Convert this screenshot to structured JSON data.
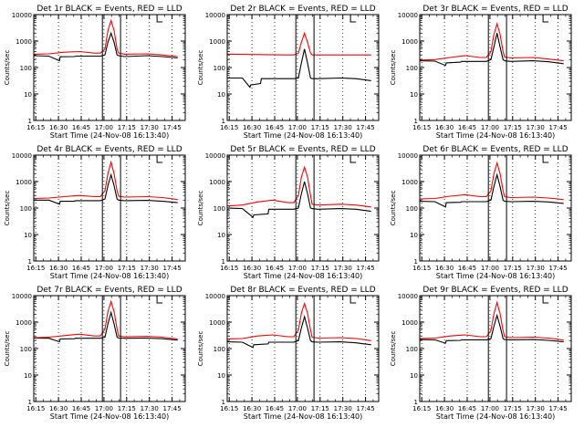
{
  "page": {
    "background": "#ffffff"
  },
  "colors": {
    "events": "#000000",
    "lld": "#ff0000",
    "axis": "#000000"
  },
  "shared": {
    "x_tick_labels": [
      "16:15",
      "16:30",
      "16:45",
      "17:00",
      "17:15",
      "17:30",
      "17:45"
    ],
    "y_tick_labels": [
      "1",
      "10",
      "100",
      "1000",
      "10000"
    ],
    "xlabel": "Start Time (24-Nov-08 16:13:40)",
    "ylabel": "Counts/sec"
  },
  "chart_data": [
    {
      "type": "line",
      "title": "Det 1r BLACK = Events, RED = LLD",
      "xlabel": "Start Time (24-Nov-08 16:13:40)",
      "ylabel": "Counts/sec",
      "x_unit": "minutes after 16:13:40",
      "xlim": [
        0,
        100
      ],
      "ylim": [
        1,
        10000
      ],
      "log_y": true,
      "grid": "vertical dotted at x ticks",
      "vertical_markers": [
        45.3,
        57.3
      ],
      "series": [
        {
          "name": "Events",
          "color": "#000000",
          "x": [
            0,
            10,
            17,
            17.5,
            27,
            27.5,
            44,
            47,
            49,
            51,
            53,
            55,
            56,
            60,
            75,
            85,
            95
          ],
          "y": [
            280,
            270,
            180,
            255,
            260,
            270,
            270,
            300,
            900,
            2000,
            900,
            300,
            280,
            260,
            280,
            260,
            230
          ]
        },
        {
          "name": "LLD",
          "color": "#ff0000",
          "x": [
            0,
            10,
            20,
            30,
            40,
            44,
            47,
            49,
            51,
            53,
            55,
            56,
            60,
            75,
            85,
            95
          ],
          "y": [
            320,
            330,
            380,
            400,
            350,
            350,
            500,
            2500,
            6000,
            2500,
            500,
            350,
            320,
            330,
            300,
            260
          ]
        }
      ]
    },
    {
      "type": "line",
      "title": "Det 2r BLACK = Events, RED = LLD",
      "xlabel": "Start Time (24-Nov-08 16:13:40)",
      "ylabel": "Counts/sec",
      "x_unit": "minutes after 16:13:40",
      "xlim": [
        0,
        100
      ],
      "ylim": [
        1,
        10000
      ],
      "log_y": true,
      "grid": "vertical dotted at x ticks",
      "vertical_markers": [
        45.3,
        57.3
      ],
      "series": [
        {
          "name": "Events",
          "color": "#000000",
          "x": [
            0,
            10,
            15,
            15.5,
            22,
            22.5,
            44,
            47,
            49,
            51,
            53,
            55,
            56,
            60,
            75,
            85,
            95
          ],
          "y": [
            40,
            40,
            18,
            22,
            25,
            38,
            38,
            40,
            150,
            500,
            150,
            40,
            38,
            38,
            40,
            38,
            32
          ]
        },
        {
          "name": "LLD",
          "color": "#ff0000",
          "x": [
            0,
            20,
            40,
            44,
            47,
            49,
            51,
            53,
            55,
            56,
            60,
            80,
            95
          ],
          "y": [
            320,
            310,
            300,
            300,
            350,
            900,
            2000,
            900,
            350,
            300,
            300,
            300,
            300
          ]
        }
      ]
    },
    {
      "type": "line",
      "title": "Det 3r BLACK = Events, RED = LLD",
      "xlabel": "Start Time (24-Nov-08 16:13:40)",
      "ylabel": "Counts/sec",
      "x_unit": "minutes after 16:13:40",
      "xlim": [
        0,
        100
      ],
      "ylim": [
        1,
        10000
      ],
      "log_y": true,
      "grid": "vertical dotted at x ticks",
      "vertical_markers": [
        45.3,
        57.3
      ],
      "series": [
        {
          "name": "Events",
          "color": "#000000",
          "x": [
            0,
            10,
            17,
            17.5,
            27,
            27.5,
            44,
            47,
            49,
            51,
            53,
            55,
            56,
            60,
            75,
            85,
            95
          ],
          "y": [
            180,
            175,
            120,
            150,
            160,
            170,
            170,
            200,
            600,
            2000,
            600,
            200,
            180,
            170,
            180,
            165,
            140
          ]
        },
        {
          "name": "LLD",
          "color": "#ff0000",
          "x": [
            0,
            10,
            20,
            30,
            40,
            44,
            47,
            49,
            51,
            53,
            55,
            56,
            60,
            75,
            85,
            95
          ],
          "y": [
            190,
            200,
            240,
            280,
            240,
            240,
            400,
            1800,
            4500,
            1800,
            400,
            250,
            230,
            240,
            210,
            180
          ]
        }
      ]
    },
    {
      "type": "line",
      "title": "Det 4r BLACK = Events, RED = LLD",
      "xlabel": "Start Time (24-Nov-08 16:13:40)",
      "ylabel": "Counts/sec",
      "x_unit": "minutes after 16:13:40",
      "xlim": [
        0,
        100
      ],
      "ylim": [
        1,
        10000
      ],
      "log_y": true,
      "grid": "vertical dotted at x ticks",
      "vertical_markers": [
        45.3,
        57.3
      ],
      "series": [
        {
          "name": "Events",
          "color": "#000000",
          "x": [
            0,
            10,
            17,
            17.5,
            27,
            27.5,
            44,
            47,
            49,
            51,
            53,
            55,
            56,
            60,
            75,
            85,
            95
          ],
          "y": [
            200,
            200,
            140,
            180,
            180,
            190,
            190,
            220,
            700,
            1800,
            700,
            220,
            200,
            190,
            195,
            180,
            160
          ]
        },
        {
          "name": "LLD",
          "color": "#ff0000",
          "x": [
            0,
            10,
            20,
            30,
            40,
            44,
            47,
            49,
            51,
            53,
            55,
            56,
            60,
            75,
            85,
            95
          ],
          "y": [
            230,
            240,
            270,
            300,
            270,
            270,
            450,
            2000,
            5500,
            2000,
            450,
            280,
            260,
            270,
            250,
            210
          ]
        }
      ]
    },
    {
      "type": "line",
      "title": "Det 5r BLACK = Events, RED = LLD",
      "xlabel": "Start Time (24-Nov-08 16:13:40)",
      "ylabel": "Counts/sec",
      "x_unit": "minutes after 16:13:40",
      "xlim": [
        0,
        100
      ],
      "ylim": [
        1,
        10000
      ],
      "log_y": true,
      "grid": "vertical dotted at x ticks",
      "vertical_markers": [
        45.3,
        57.3
      ],
      "series": [
        {
          "name": "Events",
          "color": "#000000",
          "x": [
            0,
            10,
            17,
            17.5,
            27,
            27.5,
            44,
            47,
            49,
            51,
            53,
            55,
            56,
            60,
            75,
            85,
            95
          ],
          "y": [
            100,
            95,
            45,
            55,
            60,
            90,
            90,
            100,
            350,
            1000,
            350,
            100,
            95,
            90,
            95,
            90,
            75
          ]
        },
        {
          "name": "LLD",
          "color": "#ff0000",
          "x": [
            0,
            10,
            20,
            30,
            40,
            44,
            47,
            49,
            51,
            53,
            55,
            56,
            60,
            75,
            85,
            95
          ],
          "y": [
            120,
            130,
            170,
            200,
            160,
            160,
            300,
            1500,
            3500,
            1500,
            300,
            140,
            130,
            140,
            130,
            110
          ]
        }
      ]
    },
    {
      "type": "line",
      "title": "Det 6r BLACK = Events, RED = LLD",
      "xlabel": "Start Time (24-Nov-08 16:13:40)",
      "ylabel": "Counts/sec",
      "x_unit": "minutes after 16:13:40",
      "xlim": [
        0,
        100
      ],
      "ylim": [
        1,
        10000
      ],
      "log_y": true,
      "grid": "vertical dotted at x ticks",
      "vertical_markers": [
        45.3,
        57.3
      ],
      "series": [
        {
          "name": "Events",
          "color": "#000000",
          "x": [
            0,
            10,
            17,
            17.5,
            27,
            27.5,
            44,
            47,
            49,
            51,
            53,
            55,
            56,
            60,
            75,
            85,
            95
          ],
          "y": [
            180,
            175,
            110,
            160,
            165,
            175,
            175,
            200,
            650,
            1800,
            650,
            200,
            180,
            175,
            180,
            170,
            150
          ]
        },
        {
          "name": "LLD",
          "color": "#ff0000",
          "x": [
            0,
            10,
            20,
            30,
            40,
            44,
            47,
            49,
            51,
            53,
            55,
            56,
            60,
            75,
            85,
            95
          ],
          "y": [
            220,
            230,
            280,
            320,
            270,
            270,
            450,
            2000,
            5000,
            2000,
            450,
            270,
            250,
            260,
            240,
            210
          ]
        }
      ]
    },
    {
      "type": "line",
      "title": "Det 7r BLACK = Events, RED = LLD",
      "xlabel": "Start Time (24-Nov-08 16:13:40)",
      "ylabel": "Counts/sec",
      "x_unit": "minutes after 16:13:40",
      "xlim": [
        0,
        100
      ],
      "ylim": [
        1,
        10000
      ],
      "log_y": true,
      "grid": "vertical dotted at x ticks",
      "vertical_markers": [
        45.3,
        57.3
      ],
      "series": [
        {
          "name": "Events",
          "color": "#000000",
          "x": [
            0,
            10,
            17,
            17.5,
            27,
            27.5,
            44,
            47,
            49,
            51,
            53,
            55,
            56,
            60,
            75,
            85,
            95
          ],
          "y": [
            250,
            245,
            180,
            230,
            235,
            245,
            245,
            270,
            850,
            2300,
            850,
            270,
            250,
            245,
            250,
            235,
            210
          ]
        },
        {
          "name": "LLD",
          "color": "#ff0000",
          "x": [
            0,
            10,
            20,
            30,
            40,
            44,
            47,
            49,
            51,
            53,
            55,
            56,
            60,
            75,
            85,
            95
          ],
          "y": [
            260,
            270,
            310,
            350,
            300,
            300,
            550,
            2500,
            6000,
            2500,
            550,
            300,
            280,
            290,
            270,
            230
          ]
        }
      ]
    },
    {
      "type": "line",
      "title": "Det 8r BLACK = Events, RED = LLD",
      "xlabel": "Start Time (24-Nov-08 16:13:40)",
      "ylabel": "Counts/sec",
      "x_unit": "minutes after 16:13:40",
      "xlim": [
        0,
        100
      ],
      "ylim": [
        1,
        10000
      ],
      "log_y": true,
      "grid": "vertical dotted at x ticks",
      "vertical_markers": [
        45.3,
        57.3
      ],
      "series": [
        {
          "name": "Events",
          "color": "#000000",
          "x": [
            0,
            10,
            17,
            17.5,
            27,
            27.5,
            44,
            47,
            49,
            51,
            53,
            55,
            56,
            60,
            75,
            85,
            95
          ],
          "y": [
            180,
            175,
            110,
            140,
            150,
            175,
            175,
            200,
            600,
            1600,
            600,
            200,
            180,
            175,
            180,
            165,
            140
          ]
        },
        {
          "name": "LLD",
          "color": "#ff0000",
          "x": [
            0,
            10,
            20,
            30,
            40,
            44,
            47,
            49,
            51,
            53,
            55,
            56,
            60,
            75,
            85,
            95
          ],
          "y": [
            230,
            240,
            300,
            330,
            280,
            280,
            500,
            2200,
            5000,
            2200,
            500,
            270,
            250,
            260,
            240,
            200
          ]
        }
      ]
    },
    {
      "type": "line",
      "title": "Det 9r BLACK = Events, RED = LLD",
      "xlabel": "Start Time (24-Nov-08 16:13:40)",
      "ylabel": "Counts/sec",
      "x_unit": "minutes after 16:13:40",
      "xlim": [
        0,
        100
      ],
      "ylim": [
        1,
        10000
      ],
      "log_y": true,
      "grid": "vertical dotted at x ticks",
      "vertical_markers": [
        45.3,
        57.3
      ],
      "series": [
        {
          "name": "Events",
          "color": "#000000",
          "x": [
            0,
            10,
            17,
            17.5,
            27,
            27.5,
            44,
            47,
            49,
            51,
            53,
            55,
            56,
            60,
            75,
            85,
            95
          ],
          "y": [
            220,
            215,
            160,
            200,
            205,
            215,
            215,
            240,
            700,
            1800,
            700,
            240,
            220,
            215,
            220,
            205,
            180
          ]
        },
        {
          "name": "LLD",
          "color": "#ff0000",
          "x": [
            0,
            10,
            20,
            30,
            40,
            44,
            47,
            49,
            51,
            53,
            55,
            56,
            60,
            75,
            85,
            95
          ],
          "y": [
            240,
            250,
            300,
            330,
            280,
            280,
            480,
            2100,
            5500,
            2100,
            480,
            280,
            260,
            270,
            250,
            210
          ]
        }
      ]
    }
  ]
}
